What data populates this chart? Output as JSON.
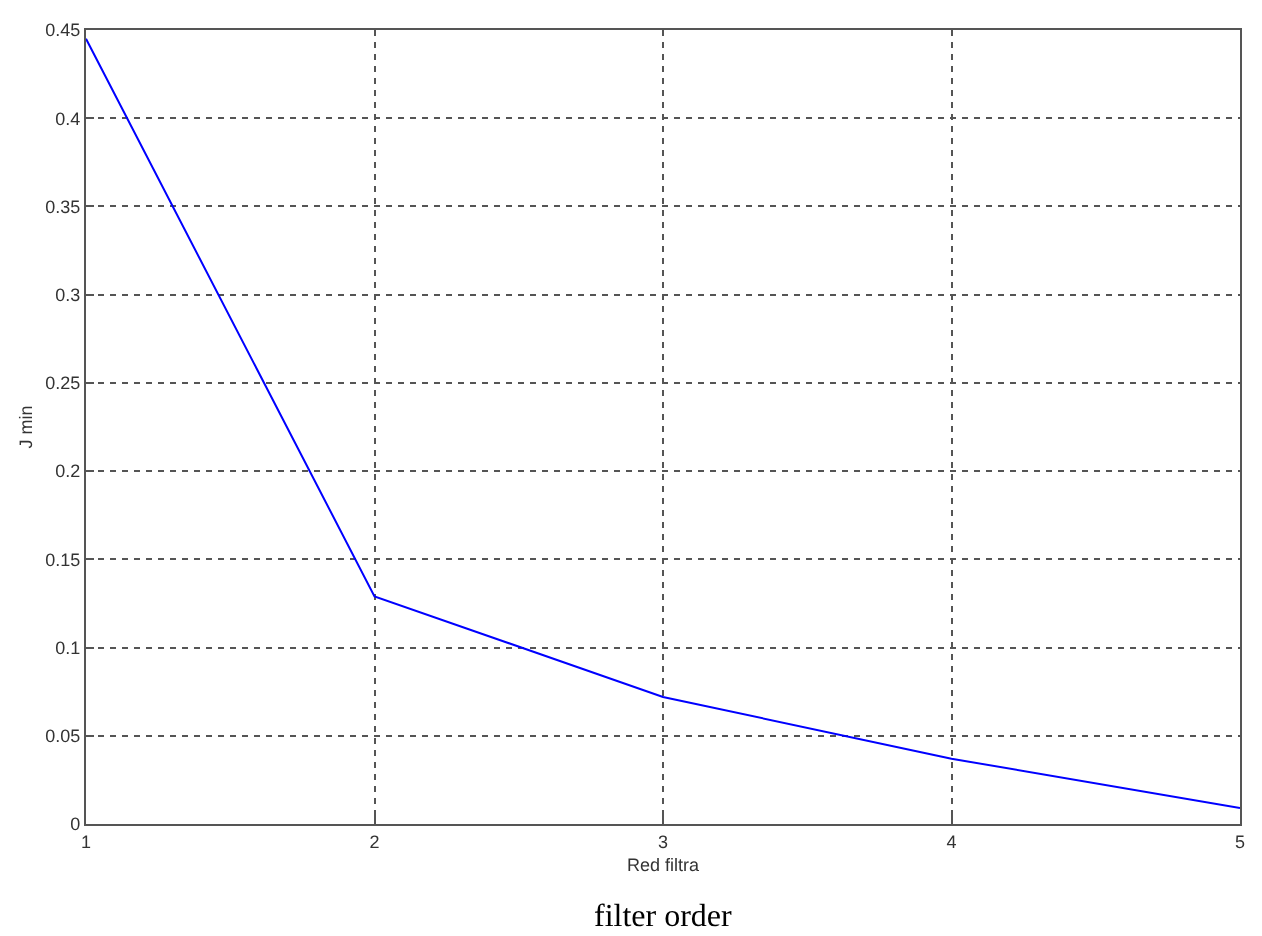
{
  "chart_data": {
    "type": "line",
    "xlabel": "Red filtra",
    "ylabel": "J min",
    "annotations": [
      "filter order"
    ],
    "x": [
      1,
      2,
      3,
      4,
      5
    ],
    "series": [
      {
        "color": "#0000ff",
        "values": [
          0.445,
          0.129,
          0.072,
          0.037,
          0.009
        ]
      }
    ],
    "xlim": [
      1,
      5
    ],
    "xticks": [
      1,
      2,
      3,
      4,
      5
    ],
    "ylim": [
      0,
      0.45
    ],
    "yticks": [
      0,
      0.05,
      0.1,
      0.15,
      0.2,
      0.25,
      0.3,
      0.35,
      0.4,
      0.45
    ],
    "grid": true,
    "marker": "none",
    "line_style": "solid"
  }
}
